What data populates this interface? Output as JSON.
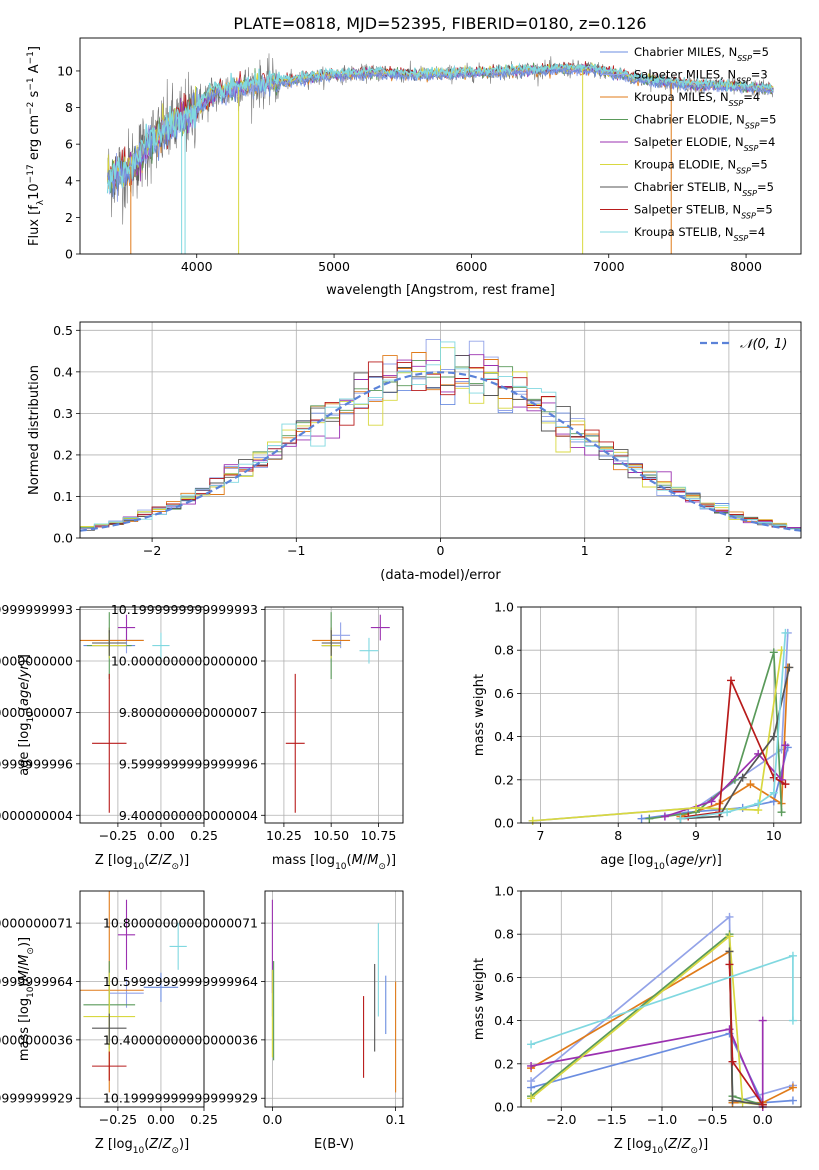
{
  "figure": {
    "title": "PLATE=0818, MJD=52395, FIBERID=0180, z=0.126"
  },
  "colors": {
    "series": [
      "#6b8de0",
      "#93a3e8",
      "#e07b1a",
      "#5a9a5a",
      "#9b30b0",
      "#d8d840",
      "#555555",
      "#b81b1b",
      "#80d8e0"
    ],
    "normal_line": "#5b82d8",
    "data_gray": "#777777"
  },
  "chart_data": [
    {
      "id": "spectrum",
      "type": "line",
      "xlabel": "wavelength [Angstrom, rest frame]",
      "ylabel": "Flux [f",
      "ylabel_parts": [
        "Flux [f",
        "λ",
        "10",
        "−17",
        " erg cm",
        "−2",
        " s",
        "−1",
        " A",
        "−1",
        "]"
      ],
      "xlim": [
        3150,
        8400
      ],
      "ylim": [
        0,
        11.8
      ],
      "xticks": [
        4000,
        5000,
        6000,
        7000,
        8000
      ],
      "yticks": [
        0,
        2,
        4,
        6,
        8,
        10
      ],
      "grid": false,
      "legend_position": "top-right",
      "legend": [
        {
          "pre": "Chabrier MILES, N",
          "sub": "SSP",
          "post": "=5"
        },
        {
          "pre": "Salpeter MILES, N",
          "sub": "SSP",
          "post": "=3"
        },
        {
          "pre": "Kroupa MILES, N",
          "sub": "SSP",
          "post": "=4"
        },
        {
          "pre": "Chabrier ELODIE, N",
          "sub": "SSP",
          "post": "=5"
        },
        {
          "pre": "Salpeter ELODIE, N",
          "sub": "SSP",
          "post": "=4"
        },
        {
          "pre": "Kroupa ELODIE, N",
          "sub": "SSP",
          "post": "=5"
        },
        {
          "pre": "Chabrier STELIB, N",
          "sub": "SSP",
          "post": "=5"
        },
        {
          "pre": "Salpeter STELIB, N",
          "sub": "SSP",
          "post": "=5"
        },
        {
          "pre": "Kroupa STELIB, N",
          "sub": "SSP",
          "post": "=4"
        }
      ],
      "continuum": {
        "x": [
          3350,
          3500,
          3650,
          3800,
          3950,
          4100,
          4300,
          4500,
          4700,
          5000,
          5300,
          5600,
          6000,
          6300,
          6600,
          6900,
          7200,
          7500,
          7800,
          8000,
          8200
        ],
        "y": [
          4.2,
          4.6,
          6.0,
          6.9,
          7.6,
          8.7,
          9.1,
          9.3,
          9.5,
          9.8,
          9.9,
          9.8,
          9.9,
          10.0,
          10.1,
          10.1,
          9.6,
          9.3,
          9.2,
          9.1,
          9.0
        ]
      }
    },
    {
      "id": "residuals",
      "type": "line",
      "xlabel": "(data-model)/error",
      "ylabel": "Normed distribution",
      "xlim": [
        -2.5,
        2.5
      ],
      "ylim": [
        0,
        0.52
      ],
      "xticks": [
        -2,
        -1,
        0,
        1,
        2
      ],
      "yticks": [
        0.0,
        0.1,
        0.2,
        0.3,
        0.4,
        0.5
      ],
      "grid": true,
      "legend_position": "top-right",
      "legend_label": "𝒩(0, 1)",
      "bin_width": 0.1,
      "mean": 0,
      "sigma": 1
    },
    {
      "id": "age_vs_Z",
      "type": "scatter",
      "xlabel": "Z [log",
      "ylabel": "age  [log",
      "xlim": [
        -0.47,
        0.25
      ],
      "ylim": [
        9.37,
        10.21
      ],
      "xticks": [
        -0.25,
        0.0,
        0.25
      ],
      "yticks": [
        9.4,
        9.6,
        9.8,
        10.0,
        10.2
      ],
      "grid": true,
      "points": [
        {
          "x": -0.3,
          "y": 10.06,
          "xerr": 0.15,
          "yerr": 0.05,
          "c": 0
        },
        {
          "x": -0.2,
          "y": 10.08,
          "xerr": 0.1,
          "yerr": 0.05,
          "c": 1
        },
        {
          "x": -0.3,
          "y": 10.08,
          "xerr": 0.2,
          "yerr": 0.05,
          "c": 2
        },
        {
          "x": -0.3,
          "y": 10.06,
          "xerr": 0.13,
          "yerr": 0.13,
          "c": 3
        },
        {
          "x": -0.2,
          "y": 10.13,
          "xerr": 0.05,
          "yerr": 0.05,
          "c": 4
        },
        {
          "x": -0.3,
          "y": 10.06,
          "xerr": 0.1,
          "yerr": 0.05,
          "c": 5
        },
        {
          "x": -0.3,
          "y": 10.07,
          "xerr": 0.1,
          "yerr": 0.05,
          "c": 6
        },
        {
          "x": -0.3,
          "y": 9.68,
          "xerr": 0.1,
          "yerr": 0.27,
          "c": 7
        },
        {
          "x": 0.0,
          "y": 10.06,
          "xerr": 0.05,
          "yerr": 0.05,
          "c": 8
        }
      ]
    },
    {
      "id": "age_vs_mass",
      "type": "scatter",
      "xlabel": "mass [log",
      "ylabel": "",
      "xlim": [
        10.15,
        10.88
      ],
      "ylim": [
        9.37,
        10.21
      ],
      "xticks": [
        10.25,
        10.5,
        10.75
      ],
      "yticks": [
        9.4,
        9.6,
        9.8,
        10.0,
        10.2
      ],
      "grid": true,
      "points": [
        {
          "x": 10.5,
          "y": 10.06,
          "xerr": 0.05,
          "yerr": 0.05,
          "c": 0
        },
        {
          "x": 10.55,
          "y": 10.1,
          "xerr": 0.05,
          "yerr": 0.05,
          "c": 1
        },
        {
          "x": 10.5,
          "y": 10.08,
          "xerr": 0.1,
          "yerr": 0.05,
          "c": 2
        },
        {
          "x": 10.5,
          "y": 10.06,
          "xerr": 0.05,
          "yerr": 0.13,
          "c": 3
        },
        {
          "x": 10.76,
          "y": 10.13,
          "xerr": 0.05,
          "yerr": 0.05,
          "c": 4
        },
        {
          "x": 10.5,
          "y": 10.06,
          "xerr": 0.05,
          "yerr": 0.05,
          "c": 5
        },
        {
          "x": 10.5,
          "y": 10.07,
          "xerr": 0.05,
          "yerr": 0.05,
          "c": 6
        },
        {
          "x": 10.31,
          "y": 9.68,
          "xerr": 0.05,
          "yerr": 0.27,
          "c": 7
        },
        {
          "x": 10.7,
          "y": 10.04,
          "xerr": 0.05,
          "yerr": 0.05,
          "c": 8
        }
      ]
    },
    {
      "id": "mw_vs_age",
      "type": "line",
      "xlabel": "age  [log",
      "ylabel": "mass weight",
      "xlim": [
        6.75,
        10.35
      ],
      "ylim": [
        0,
        1.0
      ],
      "xticks": [
        7,
        8,
        9,
        10
      ],
      "yticks": [
        0.0,
        0.2,
        0.4,
        0.6,
        0.8,
        1.0
      ],
      "grid": true,
      "series": [
        {
          "x": [
            8.3,
            8.9,
            9.6,
            10.0,
            10.18
          ],
          "y": [
            0.02,
            0.05,
            0.07,
            0.1,
            0.35
          ],
          "c": 0
        },
        {
          "x": [
            6.9,
            9.0,
            10.1,
            10.18
          ],
          "y": [
            0.01,
            0.07,
            0.34,
            0.88
          ],
          "c": 1
        },
        {
          "x": [
            8.8,
            9.3,
            9.7,
            10.1,
            10.18
          ],
          "y": [
            0.03,
            0.09,
            0.18,
            0.09,
            0.72
          ],
          "c": 2
        },
        {
          "x": [
            8.4,
            9.0,
            9.5,
            10.0,
            10.1
          ],
          "y": [
            0.02,
            0.05,
            0.2,
            0.79,
            0.05
          ],
          "c": 3
        },
        {
          "x": [
            8.6,
            9.2,
            9.8,
            10.1,
            10.15
          ],
          "y": [
            0.03,
            0.1,
            0.32,
            0.2,
            0.36
          ],
          "c": 4
        },
        {
          "x": [
            6.9,
            9.0,
            9.8,
            10.1
          ],
          "y": [
            0.01,
            0.07,
            0.06,
            0.8
          ],
          "c": 5
        },
        {
          "x": [
            8.8,
            9.3,
            9.6,
            10.0,
            10.2
          ],
          "y": [
            0.02,
            0.03,
            0.21,
            0.4,
            0.72
          ],
          "c": 6
        },
        {
          "x": [
            8.9,
            9.3,
            9.45,
            10.0,
            10.15
          ],
          "y": [
            0.03,
            0.05,
            0.66,
            0.21,
            0.18
          ],
          "c": 7
        },
        {
          "x": [
            8.8,
            9.4,
            9.8,
            10.0,
            10.15
          ],
          "y": [
            0.02,
            0.05,
            0.09,
            0.14,
            0.88
          ],
          "c": 8
        }
      ]
    },
    {
      "id": "mass_vs_Z",
      "type": "scatter",
      "xlabel": "Z [log",
      "ylabel": "mass [log",
      "xlim": [
        -0.47,
        0.25
      ],
      "ylim": [
        10.17,
        10.91
      ],
      "xticks": [
        -0.25,
        0.0,
        0.25
      ],
      "yticks": [
        10.2,
        10.4,
        10.6,
        10.8
      ],
      "grid": true,
      "points": [
        {
          "x": 0.0,
          "y": 10.58,
          "xerr": 0.1,
          "yerr": 0.05,
          "c": 0
        },
        {
          "x": -0.2,
          "y": 10.56,
          "xerr": 0.1,
          "yerr": 0.05,
          "c": 1
        },
        {
          "x": -0.3,
          "y": 10.57,
          "xerr": 0.2,
          "yerr": 0.35,
          "c": 2
        },
        {
          "x": -0.3,
          "y": 10.52,
          "xerr": 0.15,
          "yerr": 0.15,
          "c": 3
        },
        {
          "x": -0.2,
          "y": 10.76,
          "xerr": 0.05,
          "yerr": 0.12,
          "c": 4
        },
        {
          "x": -0.3,
          "y": 10.48,
          "xerr": 0.15,
          "yerr": 0.15,
          "c": 5
        },
        {
          "x": -0.3,
          "y": 10.44,
          "xerr": 0.1,
          "yerr": 0.05,
          "c": 6
        },
        {
          "x": -0.3,
          "y": 10.31,
          "xerr": 0.1,
          "yerr": 0.05,
          "c": 7
        },
        {
          "x": 0.1,
          "y": 10.72,
          "xerr": 0.05,
          "yerr": 0.08,
          "c": 8
        }
      ]
    },
    {
      "id": "mass_vs_EBV",
      "type": "scatter",
      "xlabel": "E(B-V)",
      "ylabel": "",
      "xlim": [
        -0.006,
        0.106
      ],
      "ylim": [
        10.17,
        10.91
      ],
      "xticks": [
        0.0,
        0.1
      ],
      "yticks": [
        10.2,
        10.4,
        10.6,
        10.8
      ],
      "grid": true,
      "points": [
        {
          "x": 0.092,
          "y": 10.52,
          "xerr": 0.0,
          "yerr": 0.1,
          "c": 0
        },
        {
          "x": 0.0,
          "y": 10.56,
          "xerr": 0.0,
          "yerr": 0.08,
          "c": 1
        },
        {
          "x": 0.1,
          "y": 10.41,
          "xerr": 0.0,
          "yerr": 0.19,
          "c": 2
        },
        {
          "x": 0.001,
          "y": 10.5,
          "xerr": 0.0,
          "yerr": 0.17,
          "c": 3
        },
        {
          "x": 0.0,
          "y": 10.72,
          "xerr": 0.0,
          "yerr": 0.16,
          "c": 4
        },
        {
          "x": 0.0,
          "y": 10.49,
          "xerr": 0.0,
          "yerr": 0.15,
          "c": 5
        },
        {
          "x": 0.083,
          "y": 10.51,
          "xerr": 0.0,
          "yerr": 0.15,
          "c": 6
        },
        {
          "x": 0.074,
          "y": 10.41,
          "xerr": 0.0,
          "yerr": 0.14,
          "c": 7
        },
        {
          "x": 0.086,
          "y": 10.64,
          "xerr": 0.0,
          "yerr": 0.16,
          "c": 8
        }
      ]
    },
    {
      "id": "mw_vs_Z",
      "type": "line",
      "xlabel": "Z [log",
      "ylabel": "mass weight",
      "xlim": [
        -2.4,
        0.38
      ],
      "ylim": [
        0,
        1.0
      ],
      "xticks": [
        -2.0,
        -1.5,
        -1.0,
        -0.5,
        0.0
      ],
      "yticks": [
        0.0,
        0.2,
        0.4,
        0.6,
        0.8,
        1.0
      ],
      "grid": true,
      "series": [
        {
          "x": [
            -2.3,
            -0.33,
            0.0,
            0.3
          ],
          "y": [
            0.09,
            0.34,
            0.02,
            0.03
          ],
          "c": 0
        },
        {
          "x": [
            -2.3,
            -0.33,
            -0.3,
            0.3
          ],
          "y": [
            0.12,
            0.88,
            0.02,
            0.1
          ],
          "c": 1
        },
        {
          "x": [
            -2.3,
            -0.33,
            -0.3,
            0.0,
            0.3
          ],
          "y": [
            0.18,
            0.72,
            0.02,
            0.02,
            0.09
          ],
          "c": 2
        },
        {
          "x": [
            -2.3,
            -0.33,
            -0.3,
            0.0
          ],
          "y": [
            0.05,
            0.8,
            0.05,
            0.01
          ],
          "c": 3
        },
        {
          "x": [
            -2.3,
            -0.33,
            0.0,
            0.0
          ],
          "y": [
            0.19,
            0.36,
            0.0,
            0.4
          ],
          "c": 4
        },
        {
          "x": [
            -2.3,
            -0.33,
            -0.2,
            0.0
          ],
          "y": [
            0.04,
            0.79,
            0.02,
            0.01
          ],
          "c": 5
        },
        {
          "x": [
            -0.33,
            -0.3,
            0.0
          ],
          "y": [
            0.72,
            0.03,
            0.01
          ],
          "c": 6
        },
        {
          "x": [
            -0.33,
            -0.3,
            0.0
          ],
          "y": [
            0.66,
            0.21,
            0.01
          ],
          "c": 7
        },
        {
          "x": [
            -2.3,
            0.3,
            0.3
          ],
          "y": [
            0.29,
            0.7,
            0.4
          ],
          "c": 8
        }
      ]
    }
  ]
}
